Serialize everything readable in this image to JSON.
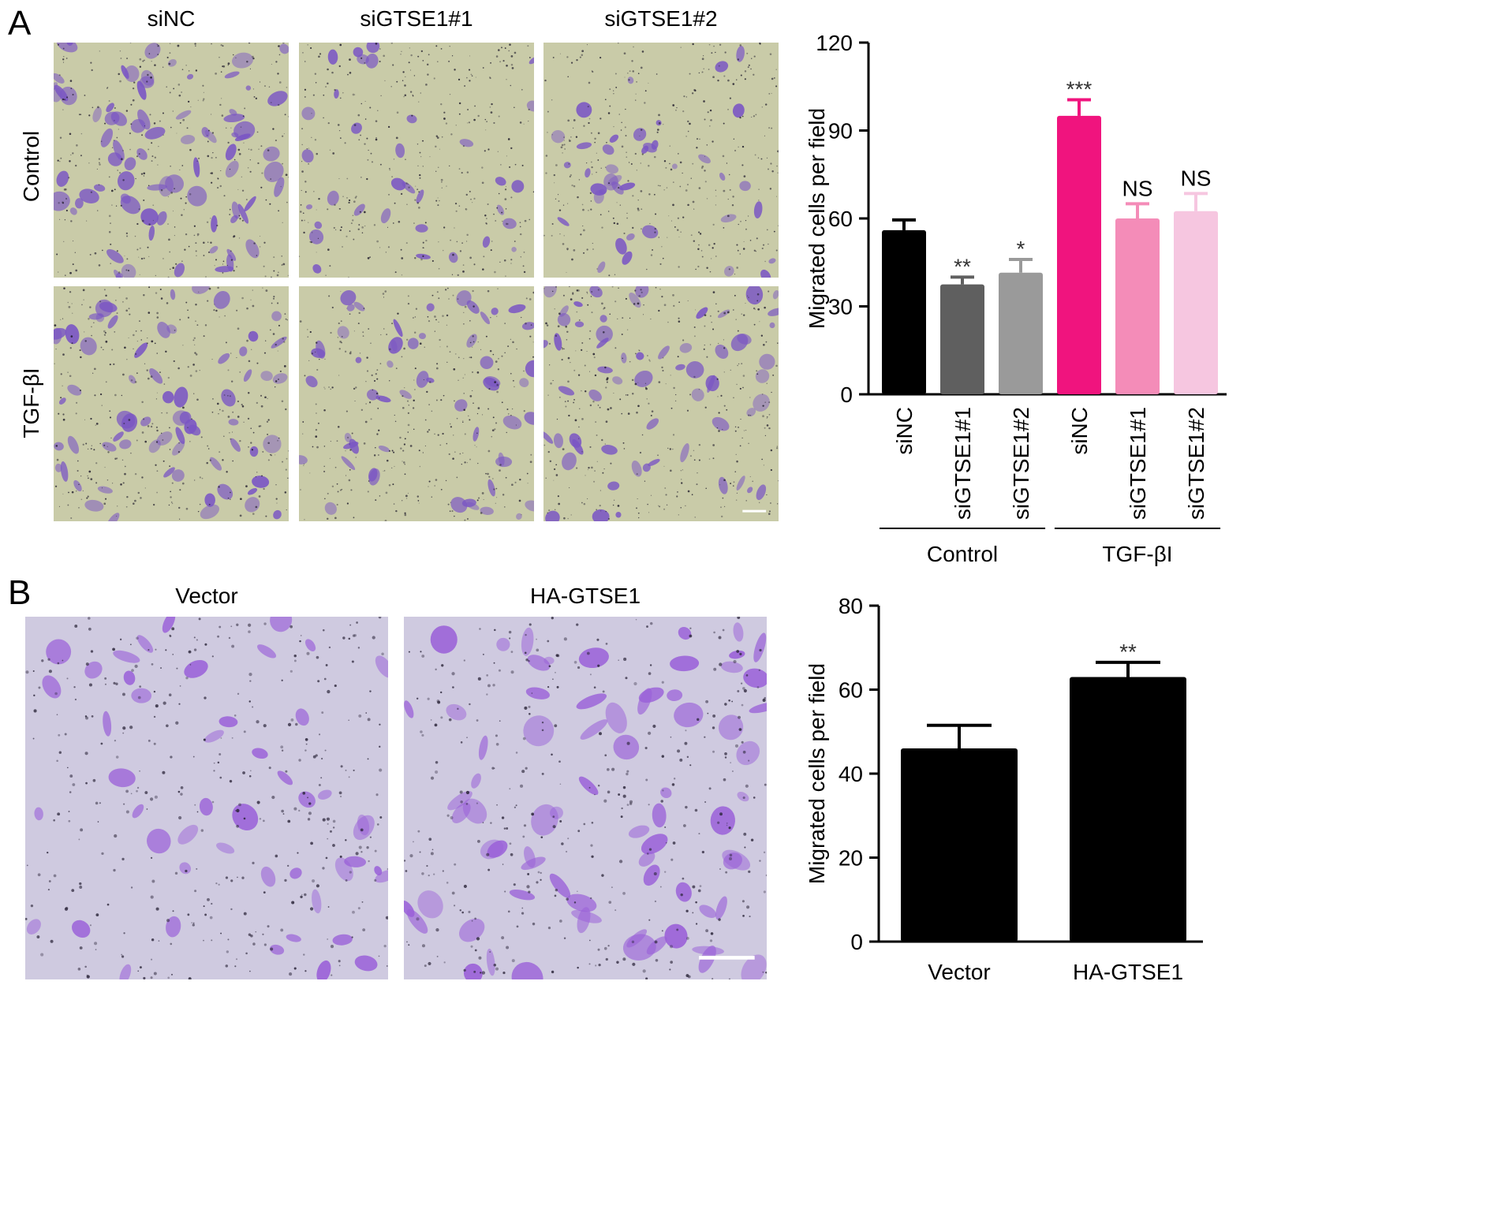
{
  "panel_a": {
    "letter": "A",
    "column_labels": [
      "siNC",
      "siGTSE1#1",
      "siGTSE1#2"
    ],
    "row_labels": [
      "Control",
      "TGF-βI"
    ],
    "image_style": {
      "background": "#c9cba8",
      "cell_color": "#7a55c4",
      "dot_color": "#1e1a2a"
    }
  },
  "panel_b": {
    "letter": "B",
    "column_labels": [
      "Vector",
      "HA-GTSE1"
    ],
    "image_style": {
      "background": "#cfcae0",
      "cell_color": "#9a60d8",
      "dot_color": "#2a2438"
    }
  },
  "chart_data": [
    {
      "type": "bar",
      "ylabel": "Migrated cells per field",
      "ylim": [
        0,
        120
      ],
      "yticks": [
        0,
        30,
        60,
        90,
        120
      ],
      "categories": [
        "siNC",
        "siGTSE1#1",
        "siGTSE1#2",
        "siNC",
        "siGTSE1#1",
        "siGTSE1#2"
      ],
      "values": [
        56,
        37.5,
        41.5,
        95,
        60,
        62.5
      ],
      "errors": [
        3.5,
        2.5,
        4.5,
        5.5,
        5,
        6
      ],
      "significance": [
        "",
        "**",
        "*",
        "***",
        "NS",
        "NS"
      ],
      "colors": [
        "#000000",
        "#5f5f5f",
        "#9a9a9a",
        "#f0147e",
        "#f48cb8",
        "#f6c6e0"
      ],
      "groups": [
        {
          "label": "Control",
          "members": [
            0,
            1,
            2
          ]
        },
        {
          "label": "TGF-βI",
          "members": [
            3,
            4,
            5
          ]
        }
      ]
    },
    {
      "type": "bar",
      "ylabel": "Migrated cells per field",
      "ylim": [
        0,
        80
      ],
      "yticks": [
        0,
        20,
        40,
        60,
        80
      ],
      "categories": [
        "Vector",
        "HA-GTSE1"
      ],
      "values": [
        46,
        63
      ],
      "errors": [
        5.5,
        3.5
      ],
      "significance": [
        "",
        "**"
      ],
      "colors": [
        "#000000",
        "#000000"
      ]
    }
  ]
}
